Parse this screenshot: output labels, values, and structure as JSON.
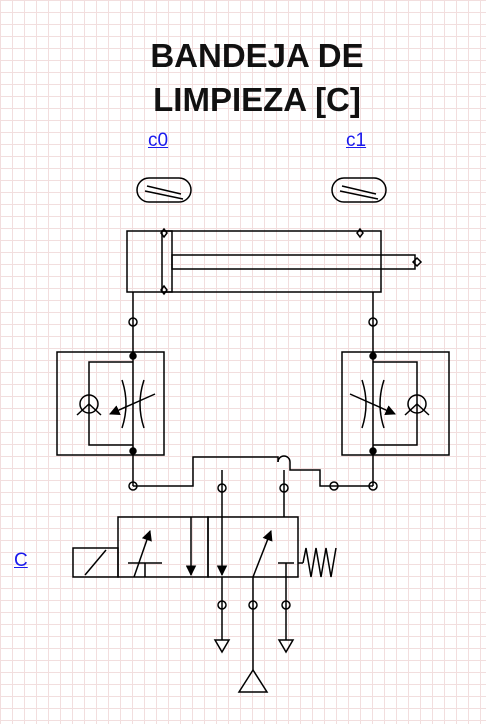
{
  "title": {
    "line1": "BANDEJA DE",
    "line2": "LIMPIEZA [C]"
  },
  "labels": {
    "sensor_left": "c0",
    "sensor_right": "c1",
    "valve_control": "C"
  },
  "colors": {
    "line": "#000000",
    "link": "#1a1aee",
    "grid": "#f2dede",
    "background": "#ffffff"
  }
}
